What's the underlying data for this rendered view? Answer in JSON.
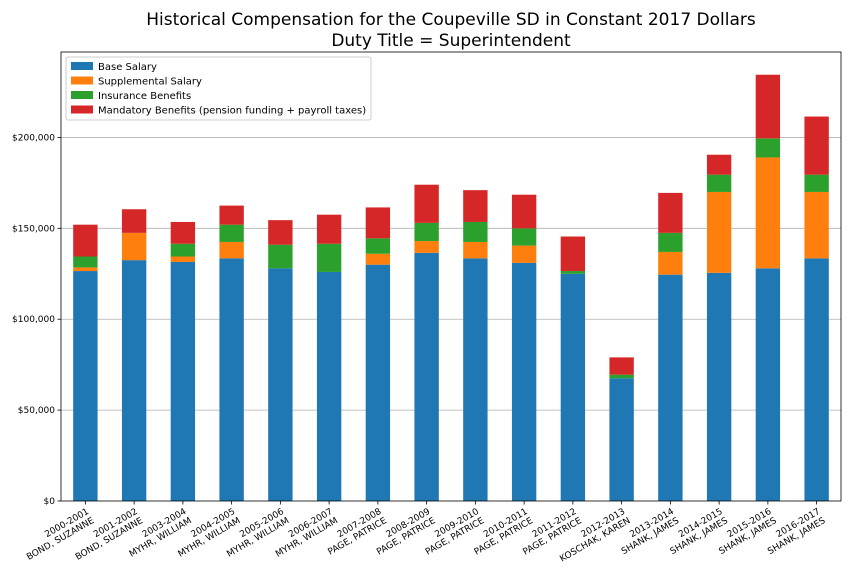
{
  "chart_data": {
    "type": "bar",
    "stacked": true,
    "title": "Historical Compensation for the Coupeville SD in Constant 2017 Dollars",
    "subtitle": "Duty Title = Superintendent",
    "xlabel": "",
    "ylabel": "",
    "ylim": [
      0,
      247000
    ],
    "yticks": [
      0,
      50000,
      100000,
      150000,
      200000
    ],
    "ytick_labels": [
      "$0",
      "$50,000",
      "$100,000",
      "$150,000",
      "$200,000"
    ],
    "grid": "horizontal",
    "legend_position": "top-left",
    "categories": [
      [
        "2000-2001",
        "BOND, SUZANNE"
      ],
      [
        "2001-2002",
        "BOND, SUZANNE"
      ],
      [
        "2003-2004",
        "MYHR, WILLIAM"
      ],
      [
        "2004-2005",
        "MYHR, WILLIAM"
      ],
      [
        "2005-2006",
        "MYHR, WILLIAM"
      ],
      [
        "2006-2007",
        "MYHR, WILLIAM"
      ],
      [
        "2007-2008",
        "PAGE, PATRICE"
      ],
      [
        "2008-2009",
        "PAGE, PATRICE"
      ],
      [
        "2009-2010",
        "PAGE, PATRICE"
      ],
      [
        "2010-2011",
        "PAGE, PATRICE"
      ],
      [
        "2011-2012",
        "PAGE, PATRICE"
      ],
      [
        "2012-2013",
        "KOSCHAK, KAREN"
      ],
      [
        "2013-2014",
        "SHANK, JAMES"
      ],
      [
        "2014-2015",
        "SHANK, JAMES"
      ],
      [
        "2015-2016",
        "SHANK, JAMES"
      ],
      [
        "2016-2017",
        "SHANK, JAMES"
      ]
    ],
    "series": [
      {
        "name": "Base Salary",
        "color": "#1f77b4",
        "values": [
          126500,
          132500,
          131500,
          133500,
          128000,
          126000,
          130000,
          136500,
          133500,
          131000,
          125000,
          67500,
          124500,
          125500,
          128000,
          133500
        ]
      },
      {
        "name": "Supplemental Salary",
        "color": "#ff7f0e",
        "values": [
          2000,
          15000,
          3000,
          9000,
          0,
          0,
          6000,
          6500,
          9000,
          9500,
          0,
          0,
          12500,
          44500,
          61000,
          36500
        ]
      },
      {
        "name": "Insurance Benefits",
        "color": "#2ca02c",
        "values": [
          6000,
          0,
          7000,
          9500,
          13000,
          15500,
          8500,
          10000,
          11000,
          9500,
          1500,
          2000,
          10500,
          9500,
          10500,
          9500
        ]
      },
      {
        "name": "Mandatory Benefits (pension funding + payroll taxes)",
        "color": "#d62728",
        "values": [
          17500,
          13000,
          12000,
          10500,
          13500,
          16000,
          17000,
          21000,
          17500,
          18500,
          19000,
          9500,
          22000,
          11000,
          35000,
          32000
        ]
      }
    ]
  }
}
